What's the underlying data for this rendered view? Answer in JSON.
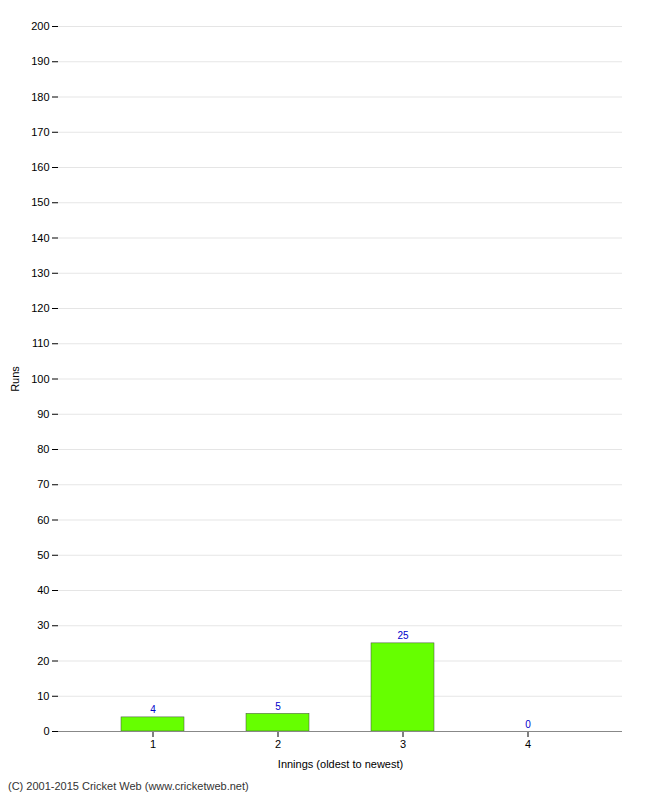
{
  "chart_data": {
    "type": "bar",
    "categories": [
      1,
      2,
      3,
      4
    ],
    "values": [
      4,
      5,
      25,
      0
    ],
    "color": "#66ff00",
    "xlabel": "Innings (oldest to newest)",
    "ylabel": "Runs",
    "ylim": [
      0,
      200
    ],
    "yticks": [
      0,
      10,
      20,
      30,
      40,
      50,
      60,
      70,
      80,
      90,
      100,
      110,
      120,
      130,
      140,
      150,
      160,
      170,
      180,
      190,
      200
    ],
    "xticks": [
      1,
      2,
      3,
      4
    ],
    "grid": true,
    "data_labels": true,
    "caption": "(C) 2001-2015 Cricket Web (www.cricketweb.net)"
  }
}
